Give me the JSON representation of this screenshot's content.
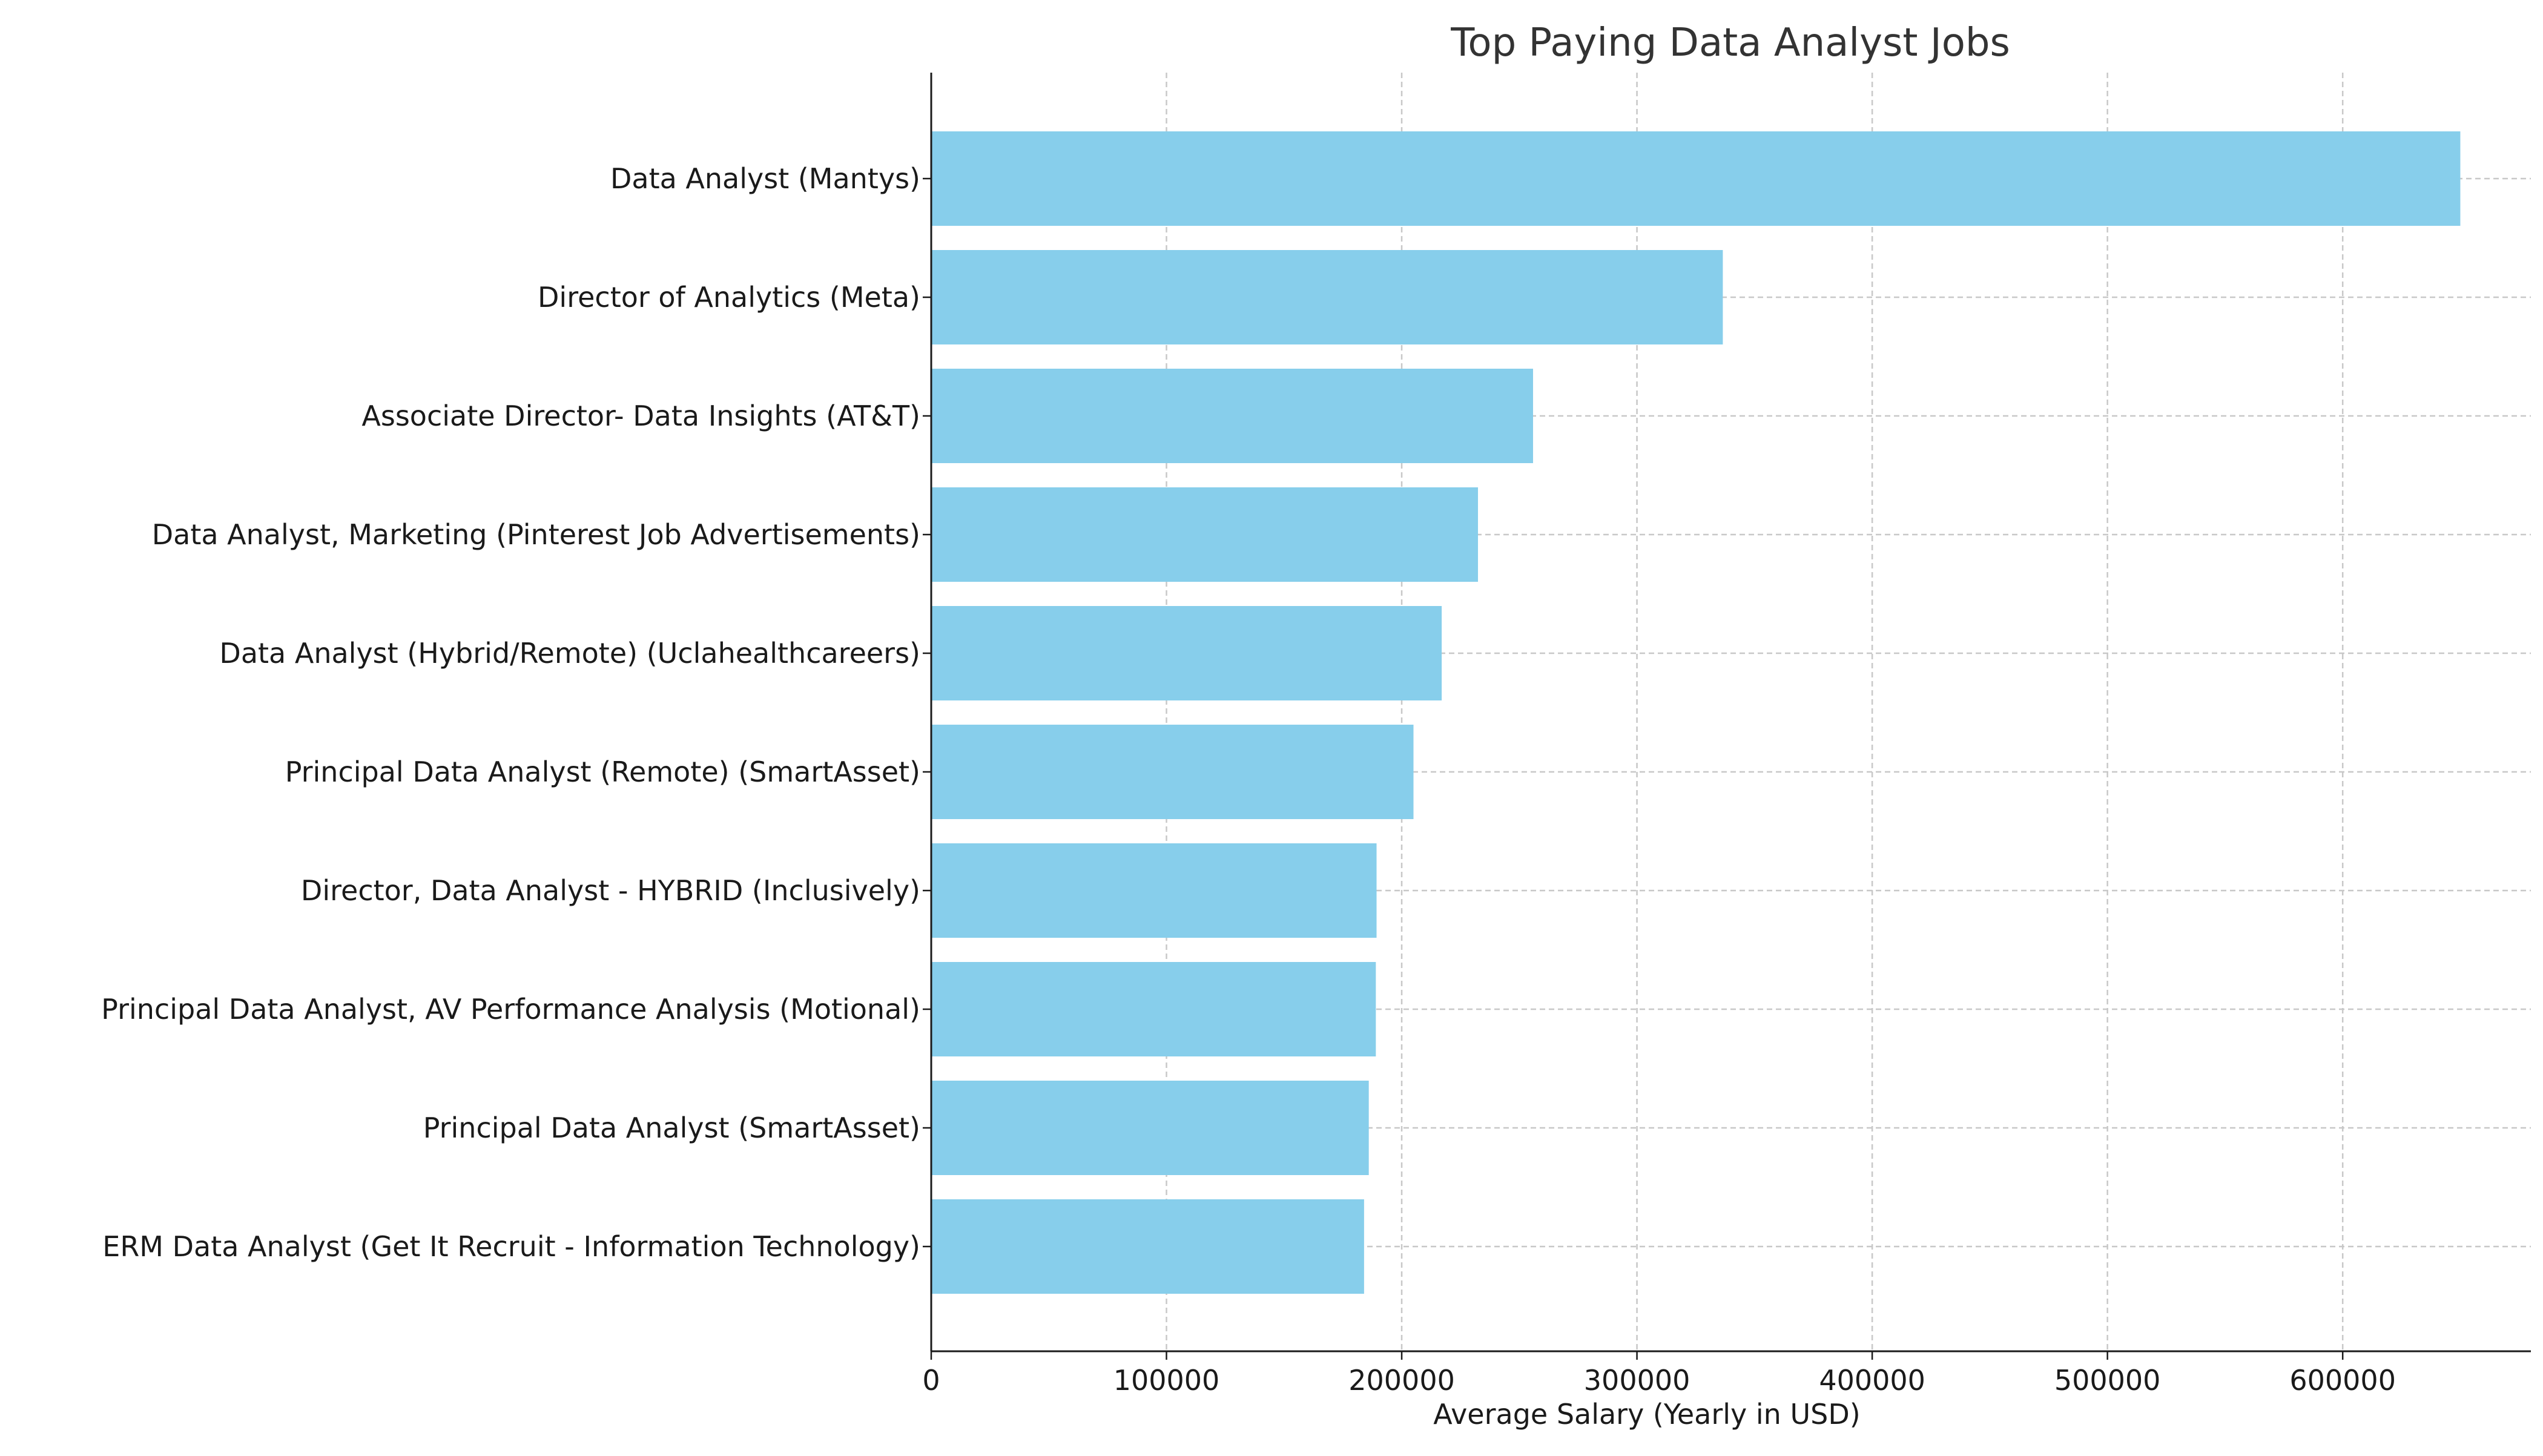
{
  "chart_data": {
    "type": "bar",
    "orientation": "horizontal",
    "title": "Top Paying Data Analyst Jobs",
    "xlabel": "Average Salary (Yearly in USD)",
    "ylabel": "",
    "xlim": [
      0,
      680000
    ],
    "xticks": [
      0,
      100000,
      200000,
      300000,
      400000,
      500000,
      600000
    ],
    "grid": true,
    "bar_color": "#87ceeb",
    "categories": [
      "Data Analyst (Mantys)",
      "Director of Analytics (Meta)",
      "Associate Director- Data Insights (AT&T)",
      "Data Analyst, Marketing (Pinterest Job Advertisements)",
      "Data Analyst (Hybrid/Remote) (Uclahealthcareers)",
      "Principal Data Analyst (Remote) (SmartAsset)",
      "Director, Data Analyst - HYBRID (Inclusively)",
      "Principal Data Analyst, AV Performance Analysis (Motional)",
      "Principal Data Analyst (SmartAsset)",
      "ERM Data Analyst (Get It Recruit - Information Technology)"
    ],
    "values": [
      650000,
      336500,
      255830,
      232423,
      217000,
      205000,
      189309,
      189000,
      186000,
      184000
    ]
  }
}
